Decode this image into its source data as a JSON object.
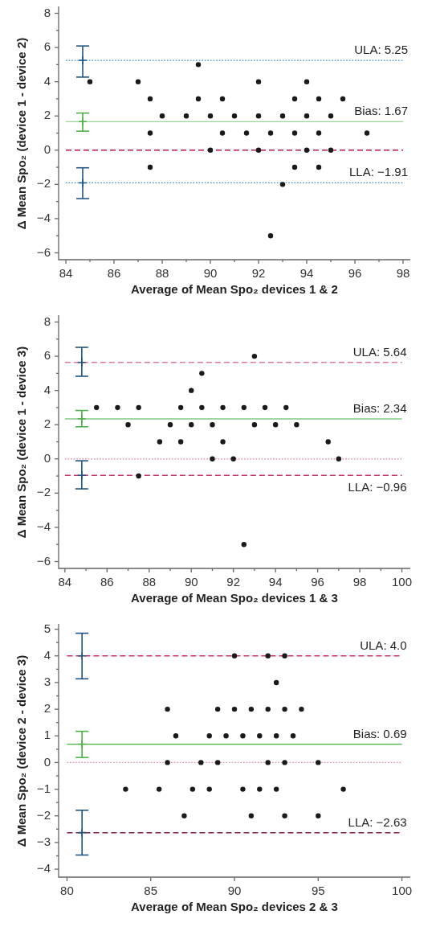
{
  "chart_data": [
    {
      "type": "scatter",
      "xlabel": "Average of Mean Spo₂ devices 1 & 2",
      "ylabel": "Δ Mean Spo₂ (device 1 - device 2)",
      "xlim": [
        83.7,
        98.3
      ],
      "ylim": [
        -6.4,
        8.4
      ],
      "xticks": [
        84,
        {
          "value": 85,
          "label": null
        },
        86,
        {
          "value": 87,
          "label": null
        },
        88,
        {
          "value": 89,
          "label": null
        },
        90,
        {
          "value": 91,
          "label": null
        },
        92,
        {
          "value": 93,
          "label": null
        },
        94,
        {
          "value": 95,
          "label": null
        },
        96,
        {
          "value": 97,
          "label": null
        },
        98
      ],
      "yticks": [
        {
          "value": -6,
          "label": "−6"
        },
        {
          "value": -5,
          "label": null
        },
        {
          "value": -4,
          "label": "−4"
        },
        {
          "value": -3,
          "label": null
        },
        {
          "value": -2,
          "label": "−2"
        },
        {
          "value": -1,
          "label": null
        },
        0,
        {
          "value": 1,
          "label": null
        },
        2,
        {
          "value": 3,
          "label": null
        },
        4,
        {
          "value": 5,
          "label": null
        },
        6,
        {
          "value": 7,
          "label": null
        },
        8
      ],
      "series": [
        {
          "color": "#1a1a1a",
          "marker": "circle",
          "x": [
            85,
            87,
            87.5,
            87.5,
            87.5,
            88,
            89,
            89.5,
            89.5,
            90,
            90,
            90.5,
            90.5,
            91,
            91.5,
            92,
            92,
            92,
            92.5,
            92.5,
            93,
            93,
            93.5,
            93.5,
            93.5,
            94,
            94,
            94,
            94.5,
            94.5,
            94.5,
            95,
            95,
            95.5,
            96.5
          ],
          "values": [
            4,
            4,
            3,
            1,
            -1,
            2,
            2,
            5,
            3,
            2,
            0,
            3,
            1,
            2,
            1,
            4,
            2,
            0,
            1,
            -5,
            2,
            -2,
            3,
            1,
            -1,
            4,
            2,
            0,
            3,
            1,
            -1,
            2,
            0,
            3,
            1
          ]
        },
        {
          "type": "scatter",
          "marker": "cross",
          "x": [
            84.7,
            84.7,
            84.7
          ],
          "values": [
            5.25,
            1.67,
            -1.91
          ],
          "errors": [
            [
              4.27,
              6.09
            ],
            [
              1.11,
              2.17
            ],
            [
              -2.83,
              -1.03
            ]
          ],
          "colors": [
            "#1f5582",
            "#4daf4a",
            "#1f5582"
          ]
        }
      ],
      "ref_lines": [
        {
          "axis": "y",
          "value": 5.25,
          "label": "ULA: 5.25",
          "color": "#3d8fcf",
          "line_style": "dotted"
        },
        {
          "axis": "y",
          "value": 1.67,
          "label": "Bias: 1.67",
          "color": "#7cc87c",
          "line_style": "solid"
        },
        {
          "axis": "y",
          "value": 0,
          "color": "#b3164f",
          "line_style": "dashed"
        },
        {
          "axis": "y",
          "value": -1.91,
          "label": "LLA: −1.91",
          "color": "#3d8fcf",
          "line_style": "dotted"
        }
      ]
    },
    {
      "type": "scatter",
      "xlabel": "Average of Mean Spo₂ devices 1 & 3",
      "ylabel": "Δ Mean Spo₂ (device 1 - device 3)",
      "xlim": [
        83.7,
        100.4
      ],
      "ylim": [
        -6.4,
        8.4
      ],
      "xticks": [
        84,
        {
          "value": 85,
          "label": null
        },
        86,
        {
          "value": 87,
          "label": null
        },
        88,
        {
          "value": 89,
          "label": null
        },
        90,
        {
          "value": 91,
          "label": null
        },
        92,
        {
          "value": 93,
          "label": null
        },
        94,
        {
          "value": 95,
          "label": null
        },
        96,
        {
          "value": 97,
          "label": null
        },
        98,
        {
          "value": 99,
          "label": null
        },
        100
      ],
      "yticks": [
        {
          "value": -6,
          "label": "−6"
        },
        {
          "value": -5,
          "label": null
        },
        {
          "value": -4,
          "label": "−4"
        },
        {
          "value": -3,
          "label": null
        },
        {
          "value": -2,
          "label": "−2"
        },
        {
          "value": -1,
          "label": null
        },
        0,
        {
          "value": 1,
          "label": null
        },
        2,
        {
          "value": 3,
          "label": null
        },
        4,
        {
          "value": 5,
          "label": null
        },
        6,
        {
          "value": 7,
          "label": null
        },
        8
      ],
      "series": [
        {
          "color": "#1a1a1a",
          "marker": "circle",
          "x": [
            85.5,
            86.5,
            87,
            87.5,
            87.5,
            88.5,
            89,
            89.5,
            89.5,
            90,
            90,
            90.5,
            90.5,
            91,
            91,
            91.5,
            91.5,
            92,
            92.5,
            92.5,
            93,
            93,
            93.5,
            94,
            94.5,
            95,
            96.5,
            97
          ],
          "values": [
            3,
            3,
            2,
            3,
            -1,
            1,
            2,
            3,
            1,
            4,
            2,
            5,
            3,
            2,
            0,
            3,
            1,
            0,
            3,
            -5,
            6,
            2,
            3,
            2,
            3,
            2,
            1,
            0
          ]
        },
        {
          "type": "scatter",
          "marker": "cross",
          "x": [
            84.8,
            84.8,
            84.8
          ],
          "values": [
            5.64,
            2.34,
            -0.96
          ],
          "errors": [
            [
              4.83,
              6.52
            ],
            [
              1.88,
              2.83
            ],
            [
              -1.75,
              -0.11
            ]
          ],
          "colors": [
            "#1f5582",
            "#4daf4a",
            "#1f5582"
          ]
        }
      ],
      "ref_lines": [
        {
          "axis": "y",
          "value": 5.64,
          "label": "ULA: 5.64",
          "color": "#d87a9e",
          "line_style": "dashed"
        },
        {
          "axis": "y",
          "value": 2.34,
          "label": "Bias: 2.34",
          "color": "#44b244",
          "line_style": "solid"
        },
        {
          "axis": "y",
          "value": 0,
          "color": "#e07fa3",
          "line_style": "dotted"
        },
        {
          "axis": "y",
          "value": -0.96,
          "label": "LLA: −0.96",
          "color": "#c8336a",
          "line_style": "dashed"
        }
      ]
    },
    {
      "type": "scatter",
      "xlabel": "Average of Mean Spo₂ devices 2 & 3",
      "ylabel": "Δ Mean Spo₂ (device 2 - device 3)",
      "xlim": [
        79.5,
        100.5
      ],
      "ylim": [
        -4.3,
        5.2
      ],
      "xticks": [
        80,
        85,
        90,
        95,
        100
      ],
      "yticks": [
        {
          "value": -4,
          "label": "−4"
        },
        {
          "value": -3.5,
          "label": null
        },
        {
          "value": -3,
          "label": "−3"
        },
        {
          "value": -2.5,
          "label": null
        },
        {
          "value": -2,
          "label": "−2"
        },
        {
          "value": -1.5,
          "label": null
        },
        {
          "value": -1,
          "label": "−1"
        },
        {
          "value": -0.5,
          "label": null
        },
        0,
        {
          "value": 0.5,
          "label": null
        },
        1,
        {
          "value": 1.5,
          "label": null
        },
        2,
        {
          "value": 2.5,
          "label": null
        },
        3,
        {
          "value": 3.5,
          "label": null
        },
        4,
        {
          "value": 4.5,
          "label": null
        },
        5
      ],
      "series": [
        {
          "color": "#1a1a1a",
          "marker": "circle",
          "x": [
            83.5,
            85.5,
            86,
            86,
            86.5,
            87,
            87.5,
            88,
            88.5,
            88.5,
            89,
            89,
            89.5,
            90,
            90,
            90.5,
            90.5,
            91,
            91,
            91.5,
            91.5,
            92,
            92,
            92,
            92.5,
            92.5,
            92.5,
            93,
            93,
            93,
            93,
            93.5,
            94,
            95,
            95,
            96.5
          ],
          "values": [
            -1,
            -1,
            2,
            0,
            1,
            -2,
            -1,
            0,
            1,
            -1,
            2,
            0,
            1,
            4,
            2,
            1,
            -1,
            2,
            -2,
            1,
            -1,
            4,
            2,
            0,
            3,
            1,
            -1,
            4,
            2,
            0,
            -2,
            1,
            2,
            0,
            -2,
            -1
          ]
        },
        {
          "type": "scatter",
          "marker": "cross",
          "x": [
            80.9,
            80.9,
            80.9
          ],
          "values": [
            4.0,
            0.69,
            -2.63
          ],
          "errors": [
            [
              3.14,
              4.85
            ],
            [
              0.19,
              1.17
            ],
            [
              -3.47,
              -1.79
            ]
          ],
          "colors": [
            "#1f5582",
            "#4daf4a",
            "#1f5582"
          ]
        }
      ],
      "ref_lines": [
        {
          "axis": "y",
          "value": 4.0,
          "label": "ULA: 4.0",
          "color": "#d42e68",
          "line_style": "dashed"
        },
        {
          "axis": "y",
          "value": 0.69,
          "label": "Bias: 0.69",
          "color": "#44b244",
          "line_style": "solid"
        },
        {
          "axis": "y",
          "value": 0,
          "color": "#e58aad",
          "line_style": "dotted"
        },
        {
          "axis": "y",
          "value": -2.63,
          "label": "LLA: −2.63",
          "color": "#7e2340",
          "line_style": "dashed"
        }
      ]
    }
  ]
}
